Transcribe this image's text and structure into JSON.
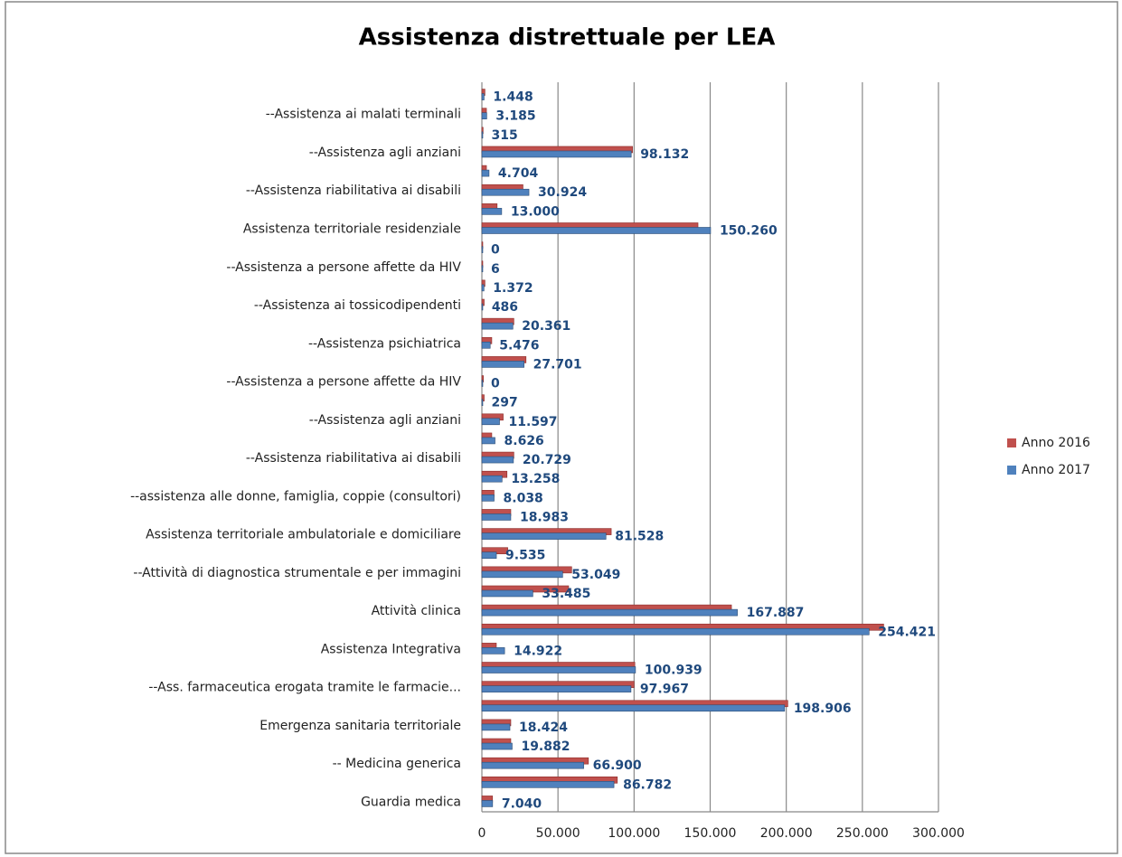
{
  "chart_data": {
    "type": "bar",
    "orientation": "horizontal",
    "title": "Assistenza distrettuale per LEA",
    "categories": [
      "Guardia medica",
      null,
      "-- Medicina generica",
      null,
      "Emergenza sanitaria territoriale",
      null,
      "--Ass. farmaceutica erogata tramite le farmacie...",
      null,
      "Assistenza Integrativa",
      null,
      "Attività clinica",
      null,
      "--Attività di diagnostica strumentale e per immagini",
      null,
      "Assistenza territoriale ambulatoriale e domiciliare",
      null,
      "--assistenza alle donne, famiglia, coppie (consultori)",
      null,
      "--Assistenza riabilitativa ai disabili",
      null,
      "--Assistenza agli anziani",
      null,
      "--Assistenza a persone affette da HIV",
      null,
      "--Assistenza psichiatrica",
      null,
      "--Assistenza ai tossicodipendenti",
      null,
      "--Assistenza a persone affette da HIV",
      null,
      "Assistenza territoriale residenziale",
      null,
      "--Assistenza riabilitativa ai disabili",
      null,
      "--Assistenza agli anziani",
      null,
      "--Assistenza ai malati terminali",
      null
    ],
    "series": [
      {
        "name": "Anno 2016",
        "color": "#c0504d",
        "values": [
          7000,
          89000,
          70000,
          19000,
          19000,
          201000,
          100000,
          100500,
          9500,
          264000,
          164000,
          57000,
          59000,
          17000,
          85000,
          19000,
          8000,
          16500,
          21000,
          6500,
          14000,
          1500,
          1000,
          29000,
          6500,
          21000,
          1500,
          2000,
          500,
          500,
          142000,
          10000,
          27000,
          3000,
          99000,
          800,
          3000,
          2000
        ]
      },
      {
        "name": "Anno 2017",
        "color": "#4f81bd",
        "values": [
          7040,
          86782,
          66900,
          19882,
          18424,
          198906,
          97967,
          100939,
          14922,
          254421,
          167887,
          33485,
          53049,
          9535,
          81528,
          18983,
          8038,
          13258,
          20729,
          8626,
          11597,
          297,
          0,
          27701,
          5476,
          20361,
          486,
          1372,
          6,
          0,
          150260,
          13000,
          30924,
          4704,
          98132,
          315,
          3185,
          1448
        ],
        "value_labels": [
          "7.040",
          "86.782",
          "66.900",
          "19.882",
          "18.424",
          "198.906",
          "97.967",
          "100.939",
          "14.922",
          "254.421",
          "167.887",
          "33.485",
          "53.049",
          "9.535",
          "81.528",
          "18.983",
          "8.038",
          "13.258",
          "20.729",
          "8.626",
          "11.597",
          "297",
          "0",
          "27.701",
          "5.476",
          "20.361",
          "486",
          "1.372",
          "6",
          "0",
          "150.260",
          "13.000",
          "30.924",
          "4.704",
          "98.132",
          "315",
          "3.185",
          "1.448"
        ]
      }
    ],
    "xlim": [
      0,
      300000
    ],
    "xticks": [
      0,
      {
        "value": 50000,
        "label": "50.000"
      },
      {
        "value": 100000,
        "label": "100.000"
      },
      {
        "value": 150000,
        "label": "150.000"
      },
      {
        "value": 200000,
        "label": "200.000"
      },
      {
        "value": 250000,
        "label": "250.000"
      },
      {
        "value": 300000,
        "label": "300.000"
      }
    ],
    "grid": true,
    "legend": "right"
  }
}
